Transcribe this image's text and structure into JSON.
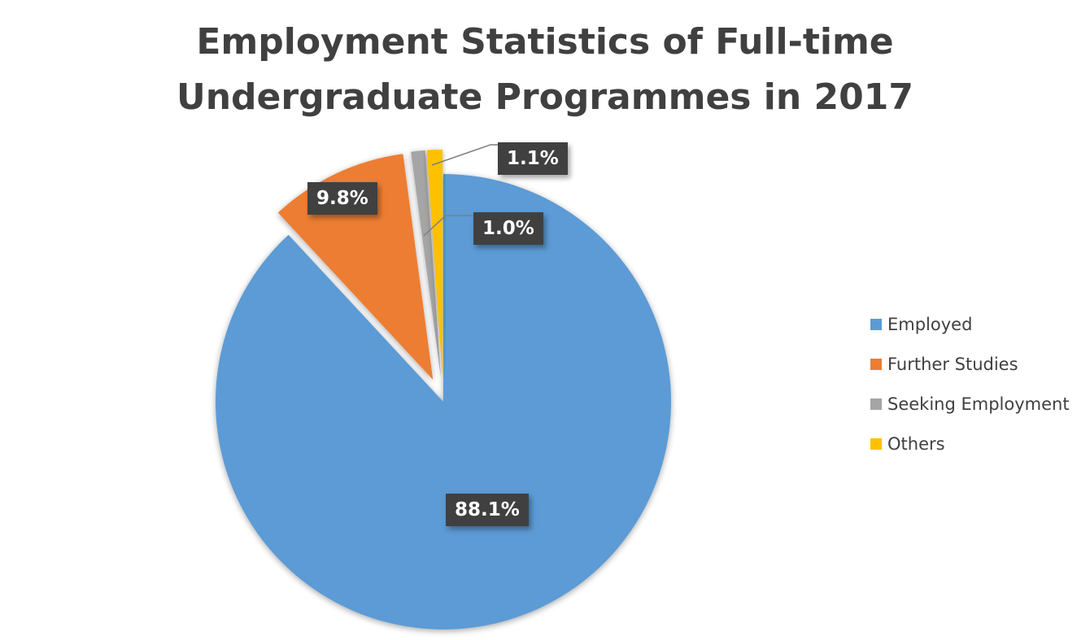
{
  "chart_data": {
    "type": "pie",
    "title": [
      "Employment Statistics of Full-time",
      "Undergraduate Programmes in 2017"
    ],
    "slices": [
      {
        "name": "Employed",
        "value": 88.1,
        "label": "88.1%",
        "color": "#5B9BD5",
        "exploded": false
      },
      {
        "name": "Further Studies",
        "value": 9.8,
        "label": "9.8%",
        "color": "#ED7D31",
        "exploded": true
      },
      {
        "name": "Seeking Employment",
        "value": 1.0,
        "label": "1.0%",
        "color": "#A5A5A5",
        "exploded": true
      },
      {
        "name": "Others",
        "value": 1.1,
        "label": "1.1%",
        "color": "#FFC000",
        "exploded": true
      }
    ],
    "legend_position": "right",
    "data_label_style": "dark-box"
  }
}
